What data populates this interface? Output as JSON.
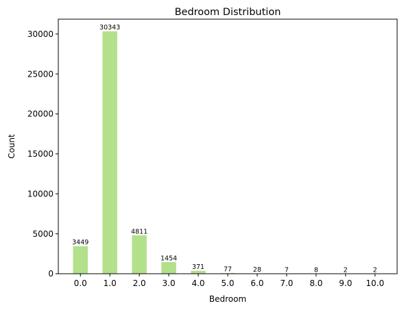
{
  "chart_data": {
    "type": "bar",
    "title": "Bedroom Distribution",
    "xlabel": "Bedroom",
    "ylabel": "Count",
    "categories": [
      "0.0",
      "1.0",
      "2.0",
      "3.0",
      "4.0",
      "5.0",
      "6.0",
      "7.0",
      "8.0",
      "9.0",
      "10.0"
    ],
    "values": [
      3449,
      30343,
      4811,
      1454,
      371,
      77,
      28,
      7,
      8,
      2,
      2
    ],
    "data_labels": [
      "3449",
      "30343",
      "4811",
      "1454",
      "371",
      "77",
      "28",
      "7",
      "8",
      "2",
      "2"
    ],
    "ylim": [
      0,
      31860
    ],
    "yticks": [
      0,
      5000,
      10000,
      15000,
      20000,
      25000,
      30000
    ],
    "ytick_labels": [
      "0",
      "5000",
      "10000",
      "15000",
      "20000",
      "25000",
      "30000"
    ],
    "bar_color": "#b3e08a",
    "grid": false,
    "legend": "none"
  }
}
